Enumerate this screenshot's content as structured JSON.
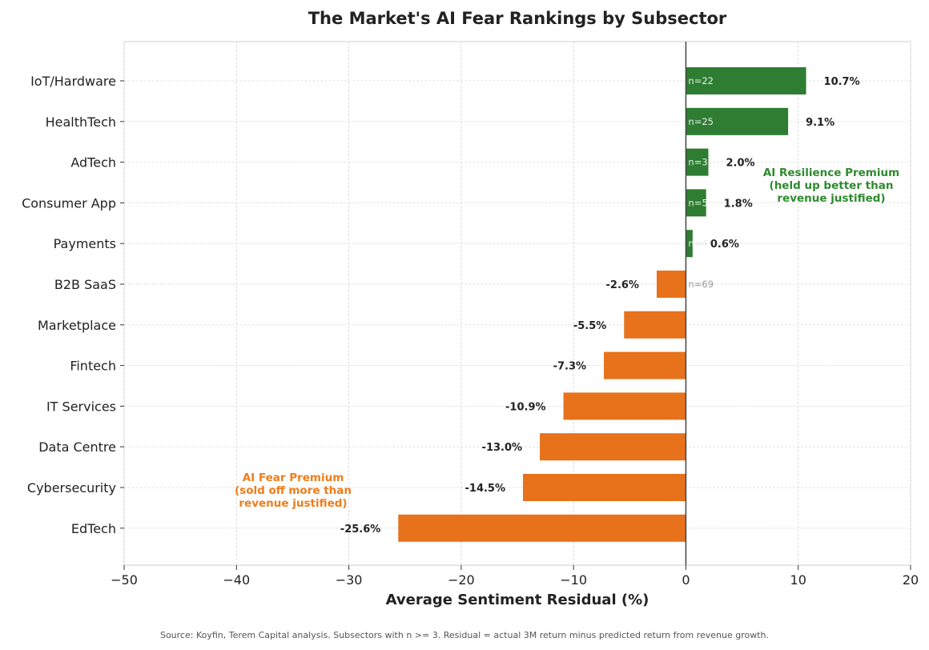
{
  "chart_data": {
    "type": "bar",
    "orientation": "horizontal",
    "title": "The Market's AI Fear Rankings by Subsector",
    "xlabel": "Average Sentiment Residual (%)",
    "ylabel": "",
    "xlim": [
      -50,
      20
    ],
    "xticks": [
      -50,
      -40,
      -30,
      -20,
      -10,
      0,
      10,
      20
    ],
    "xtick_labels": [
      "−50",
      "−40",
      "−30",
      "−20",
      "−10",
      "0",
      "10",
      "20"
    ],
    "grid": true,
    "categories": [
      "IoT/Hardware",
      "HealthTech",
      "AdTech",
      "Consumer App",
      "Payments",
      "B2B SaaS",
      "Marketplace",
      "Fintech",
      "IT Services",
      "Data Centre",
      "Cybersecurity",
      "EdTech"
    ],
    "values": [
      10.7,
      9.1,
      2.0,
      1.8,
      0.6,
      -2.6,
      -5.5,
      -7.3,
      -10.9,
      -13.0,
      -14.5,
      -25.6
    ],
    "value_labels": [
      "10.7%",
      "9.1%",
      "2.0%",
      "1.8%",
      "0.6%",
      "-2.6%",
      "-5.5%",
      "-7.3%",
      "-10.9%",
      "-13.0%",
      "-14.5%",
      "-25.6%"
    ],
    "n_labels": [
      "n=22",
      "n=25",
      "n=3",
      "n=5",
      "n=4",
      "n=69",
      "",
      "",
      "",
      "",
      "",
      ""
    ],
    "colors": {
      "positive": "#2e7d32",
      "negative": "#e8711c"
    },
    "annotations": {
      "positive": {
        "lines": [
          "AI Resilience Premium",
          "(held up better than",
          "revenue justified)"
        ],
        "color": "#2e8b2e"
      },
      "negative": {
        "lines": [
          "AI Fear Premium",
          "(sold off more than",
          "revenue justified)"
        ],
        "color": "#ef7d1a"
      }
    },
    "source": "Source: Koyfin, Terem Capital analysis. Subsectors with n >= 3. Residual = actual 3M return minus predicted return from revenue growth."
  }
}
